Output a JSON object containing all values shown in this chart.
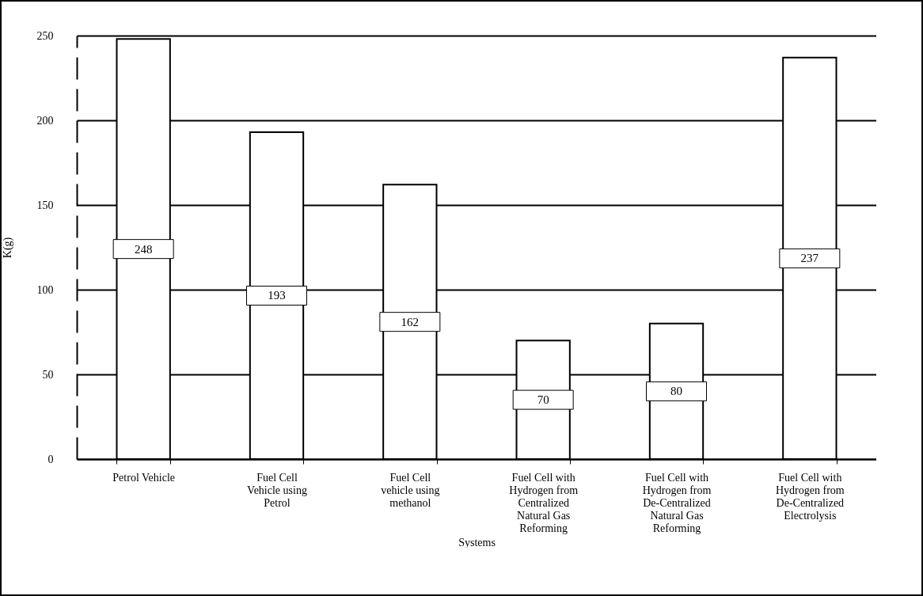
{
  "chart_data": {
    "type": "bar",
    "xlabel": "Systems",
    "ylabel": "K(g)",
    "categories": [
      "Petrol Vehicle",
      "Fuel Cell Vehicle using Petrol",
      "Fuel Cell vehicle using methanol",
      "Fuel Cell with Hydrogen from Centralized Natural Gas Reforming",
      "Fuel Cell with Hydrogen from De-Centralized Natural Gas Reforming",
      "Fuel Cell with Hydrogen from De-Centralized Electrolysis"
    ],
    "values": [
      248,
      193,
      162,
      70,
      80,
      237
    ],
    "color": "#ffffff",
    "ylim": [
      0,
      250
    ],
    "yticks": [
      0,
      50,
      100,
      150,
      200,
      250
    ],
    "grid": "y",
    "data_labels": true
  }
}
